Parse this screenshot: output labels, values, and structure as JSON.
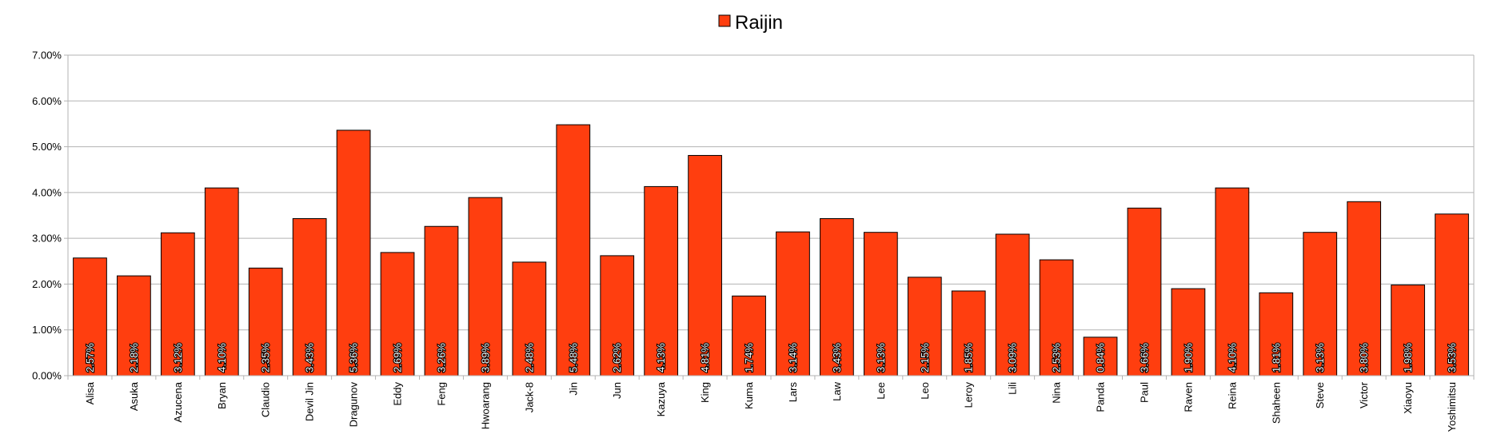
{
  "chart_data": {
    "type": "bar",
    "categories": [
      "Alisa",
      "Asuka",
      "Azucena",
      "Bryan",
      "Claudio",
      "Devil Jin",
      "Dragunov",
      "Eddy",
      "Feng",
      "Hwoarang",
      "Jack-8",
      "Jin",
      "Jun",
      "Kazuya",
      "King",
      "Kuma",
      "Lars",
      "Law",
      "Lee",
      "Leo",
      "Leroy",
      "Lili",
      "Nina",
      "Panda",
      "Paul",
      "Raven",
      "Reina",
      "Shaheen",
      "Steve",
      "Victor",
      "Xiaoyu",
      "Yoshimitsu"
    ],
    "series": [
      {
        "name": "Raijin",
        "color": "#ff3e0f",
        "values": [
          2.57,
          2.18,
          3.12,
          4.1,
          2.35,
          3.43,
          5.36,
          2.69,
          3.26,
          3.89,
          2.48,
          5.48,
          2.62,
          4.13,
          4.81,
          1.74,
          3.14,
          3.43,
          3.13,
          2.15,
          1.85,
          3.09,
          2.53,
          0.84,
          3.66,
          1.9,
          4.1,
          1.81,
          3.13,
          3.8,
          1.98,
          3.53
        ],
        "labels": [
          "2.57%",
          "2.18%",
          "3.12%",
          "4.10%",
          "2.35%",
          "3.43%",
          "5.36%",
          "2.69%",
          "3.26%",
          "3.89%",
          "2.48%",
          "5.48%",
          "2.62%",
          "4.13%",
          "4.81%",
          "1.74%",
          "3.14%",
          "3.43%",
          "3.13%",
          "2.15%",
          "1.85%",
          "3.09%",
          "2.53%",
          "0.84%",
          "3.66%",
          "1.90%",
          "4.10%",
          "1.81%",
          "3.13%",
          "3.80%",
          "1.98%",
          "3.53%"
        ]
      }
    ],
    "ylim": [
      0,
      7
    ],
    "yticks": [
      0,
      1,
      2,
      3,
      4,
      5,
      6,
      7
    ],
    "ytick_labels": [
      "0.00%",
      "1.00%",
      "2.00%",
      "3.00%",
      "4.00%",
      "5.00%",
      "6.00%",
      "7.00%"
    ],
    "legend_position": "top-center",
    "grid": true
  }
}
